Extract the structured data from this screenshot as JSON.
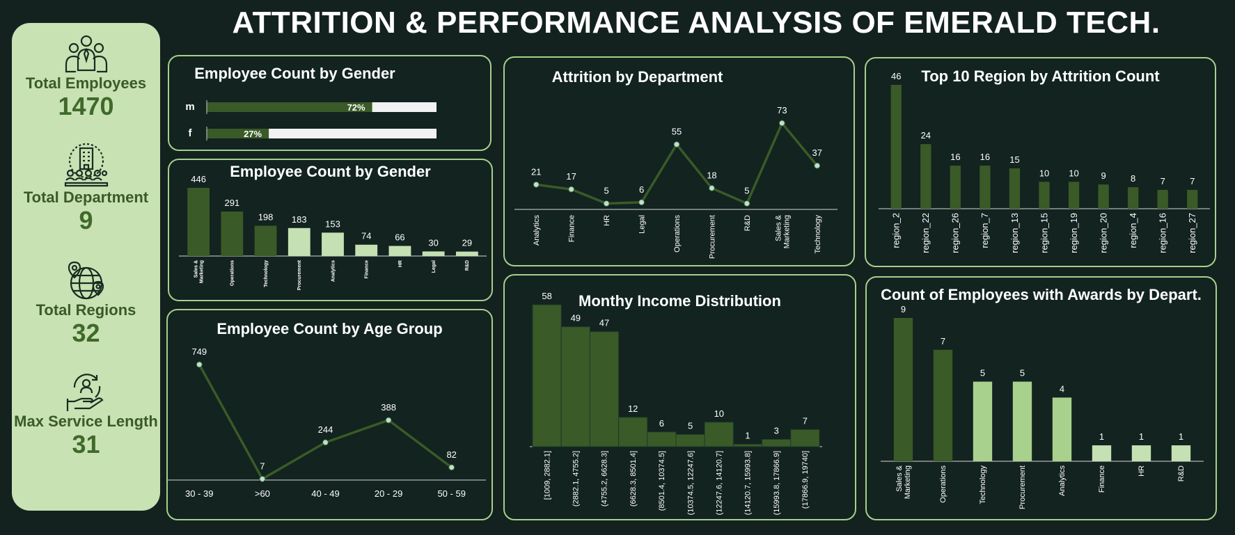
{
  "header": {
    "title": "ATTRITION & PERFORMANCE ANALYSIS OF EMERALD TECH."
  },
  "kpis": [
    {
      "label": "Total Employees",
      "value": "1470",
      "icon": "employees-group-icon"
    },
    {
      "label": "Total Department",
      "value": "9",
      "icon": "department-building-icon"
    },
    {
      "label": "Total Regions",
      "value": "32",
      "icon": "globe-location-icon"
    },
    {
      "label": "Max Service Length",
      "value": "31",
      "icon": "service-hand-cycle-icon"
    }
  ],
  "colors": {
    "dark_bar": "#3a5a27",
    "light_bar": "#c5e0b3",
    "line": "#3a5a27",
    "marker": "#b9e0d2",
    "border": "#a8cf8d",
    "background": "#14221f"
  },
  "charts": {
    "gender_pct": {
      "type": "bar",
      "title": "Employee Count by Gender",
      "categories": [
        "m",
        "f"
      ],
      "values": [
        72,
        27
      ],
      "value_labels": [
        "72%",
        "27%"
      ],
      "ylim": [
        0,
        100
      ]
    },
    "dept_count": {
      "type": "bar",
      "title": "Employee Count by Gender",
      "categories": [
        "Sales & Marketing",
        "Operations",
        "Technology",
        "Procurement",
        "Analytics",
        "Finance",
        "HR",
        "Legal",
        "R&D"
      ],
      "values": [
        446,
        291,
        198,
        183,
        153,
        74,
        66,
        30,
        29
      ]
    },
    "age_group": {
      "type": "line",
      "title": "Employee Count by Age Group",
      "categories": [
        "30 - 39",
        ">60",
        "40 - 49",
        "20 - 29",
        "50 - 59"
      ],
      "values": [
        749,
        7,
        244,
        388,
        82
      ]
    },
    "attrition_dept": {
      "type": "line",
      "title": "Attrition by Department",
      "categories": [
        "Analytics",
        "Finance",
        "HR",
        "Legal",
        "Operations",
        "Procurement",
        "R&D",
        "Sales & Marketing",
        "Technology"
      ],
      "values": [
        21,
        17,
        5,
        6,
        55,
        18,
        5,
        73,
        37
      ]
    },
    "income_dist": {
      "type": "bar",
      "title": "Monthy Income Distribution",
      "categories": [
        "[1009, 2882.1]",
        "(2882.1, 4755.2]",
        "(4755.2, 6628.3]",
        "(6628.3, 8501.4]",
        "(8501.4, 10374.5]",
        "(10374.5, 12247.6]",
        "(12247.6, 14120.7]",
        "(14120.7, 15993.8]",
        "(15993.8, 17866.9]",
        "(17866.9, 19740]"
      ],
      "values": [
        58,
        49,
        47,
        12,
        6,
        5,
        10,
        1,
        3,
        7
      ]
    },
    "region_attrition": {
      "type": "bar",
      "title": "Top 10 Region by Attrition Count",
      "categories": [
        "region_2",
        "region_22",
        "region_26",
        "region_7",
        "region_13",
        "region_15",
        "region_19",
        "region_20",
        "region_4",
        "region_16",
        "region_27"
      ],
      "values": [
        46,
        24,
        16,
        16,
        15,
        10,
        10,
        9,
        8,
        7,
        7
      ]
    },
    "awards_dept": {
      "type": "bar",
      "title": "Count of Employees with Awards by Depart.",
      "categories": [
        "Sales & Marketing",
        "Operations",
        "Technology",
        "Procurement",
        "Analytics",
        "Finance",
        "HR",
        "R&D"
      ],
      "values": [
        9,
        7,
        5,
        5,
        4,
        1,
        1,
        1
      ]
    }
  }
}
